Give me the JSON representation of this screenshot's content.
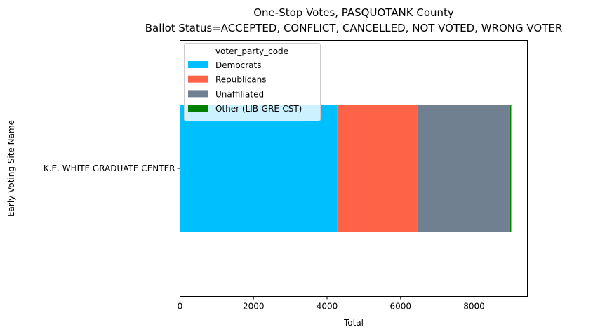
{
  "chart_data": {
    "type": "bar",
    "orientation": "horizontal",
    "stacked": true,
    "title_line1": "One-Stop Votes, PASQUOTANK County",
    "title_line2": "Ballot Status=ACCEPTED, CONFLICT, CANCELLED, NOT VOTED, WRONG VOTER",
    "xlabel": "Total",
    "ylabel": "Early Voting Site Name",
    "categories": [
      "K.E. WHITE GRADUATE CENTER"
    ],
    "xlim": [
      0,
      9450
    ],
    "xticks": [
      0,
      2000,
      4000,
      6000,
      8000
    ],
    "xtick_labels": [
      "0",
      "2000",
      "4000",
      "6000",
      "8000"
    ],
    "legend_title": "voter_party_code",
    "legend_position": "top-left",
    "grid": false,
    "series": [
      {
        "name": "Democrats",
        "values": [
          4280
        ],
        "color": "#00bfff"
      },
      {
        "name": "Republicans",
        "values": [
          2200
        ],
        "color": "#ff6347"
      },
      {
        "name": "Unaffiliated",
        "values": [
          2500
        ],
        "color": "#708090"
      },
      {
        "name": "Other (LIB-GRE-CST)",
        "values": [
          30
        ],
        "color": "#008000"
      }
    ]
  }
}
